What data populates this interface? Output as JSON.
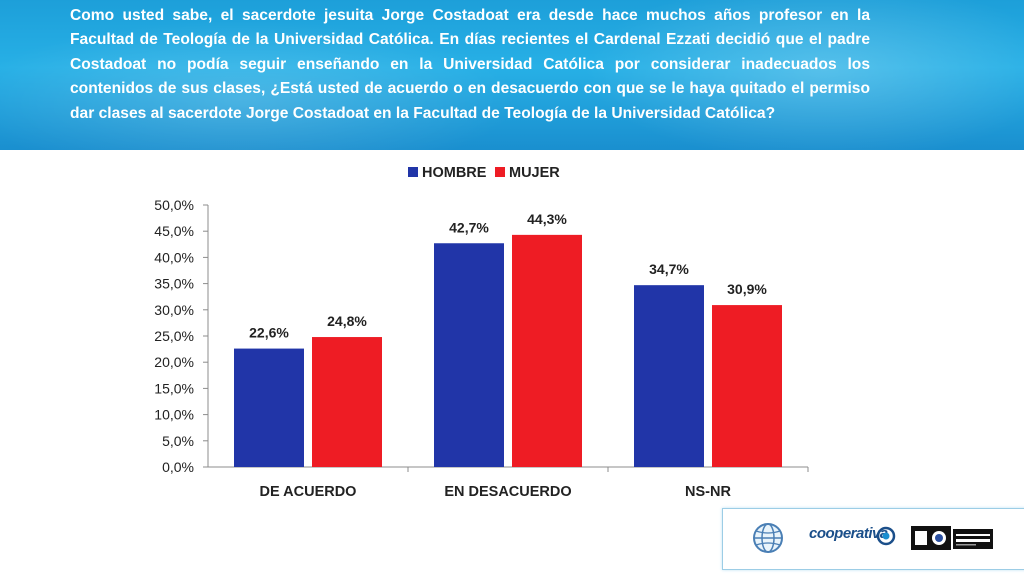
{
  "question": "Como usted sabe, el sacerdote jesuita Jorge Costadoat era desde hace muchos años profesor en la Facultad de Teología de la Universidad Católica. En días recientes el Cardenal Ezzati decidió que el padre Costadoat no podía seguir enseñando en la Universidad Católica por considerar inadecuados los contenidos de sus clases, ¿Está usted de acuerdo o en desacuerdo con que se le haya quitado el permiso dar clases al sacerdote Jorge Costadoat en la Facultad de Teología de la Universidad Católica?",
  "chart_data": {
    "type": "bar",
    "categories": [
      "DE ACUERDO",
      "EN DESACUERDO",
      "NS-NR"
    ],
    "series": [
      {
        "name": "HOMBRE",
        "color": "#2135a8",
        "values": [
          22.6,
          42.7,
          34.7
        ],
        "labels": [
          "22,6%",
          "42,7%",
          "34,7%"
        ]
      },
      {
        "name": "MUJER",
        "color": "#ee1c24",
        "values": [
          24.8,
          44.3,
          30.9
        ],
        "labels": [
          "24,8%",
          "44,3%",
          "30,9%"
        ]
      }
    ],
    "ylim": [
      0,
      50
    ],
    "yticks": [
      0,
      5,
      10,
      15,
      20,
      25,
      30,
      35,
      40,
      45,
      50
    ],
    "ytick_labels": [
      "0,0%",
      "5,0%",
      "10,0%",
      "15,0%",
      "20,0%",
      "25,0%",
      "30,0%",
      "35,0%",
      "40,0%",
      "45,0%",
      "50,0%"
    ],
    "legend": "top",
    "grid": false
  },
  "logos": {
    "cooperativa": "cooperativa",
    "icons": [
      "globe-icon",
      "cooperativa-logo",
      "universidad-central-logo"
    ]
  }
}
